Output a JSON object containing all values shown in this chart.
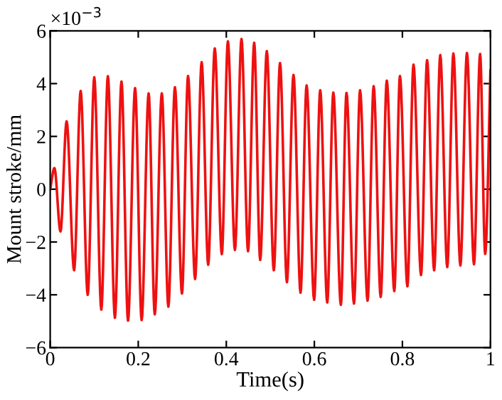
{
  "chart_data": {
    "type": "line",
    "xlabel": "Time(s)",
    "ylabel": "Mount stroke/mm",
    "annotations": [
      "×10$^{−3}$"
    ],
    "xlim": [
      0,
      1
    ],
    "ylim": [
      -6,
      6
    ],
    "xticks": [
      0,
      0.2,
      0.4,
      0.6,
      0.8,
      1
    ],
    "yticks": [
      -6,
      -4,
      -2,
      0,
      2,
      4,
      6
    ],
    "grid": false,
    "marker": "none",
    "line_style": "solid",
    "series": [
      {
        "color": "#ee1111",
        "x": [
          0,
          0.0096,
          0.0234,
          0.0373,
          0.0543,
          0.0692,
          0.0852,
          0.1001,
          0.1161,
          0.131,
          0.147,
          0.1619,
          0.1768,
          0.1928,
          0.2077,
          0.2236,
          0.2375,
          0.2535,
          0.2684,
          0.2833,
          0.2993,
          0.3131,
          0.3291,
          0.344,
          0.3589,
          0.3738,
          0.3898,
          0.4036,
          0.4196,
          0.4345,
          0.4494,
          0.4633,
          0.477,
          0.492,
          0.5079,
          0.522,
          0.5377,
          0.5526,
          0.5686,
          0.5824,
          0.5995,
          0.6133,
          0.6293,
          0.6431,
          0.6602,
          0.673,
          0.69,
          0.7038,
          0.7209,
          0.7347,
          0.7507,
          0.7645,
          0.7816,
          0.7944,
          0.8114,
          0.8252,
          0.8423,
          0.8561,
          0.8721,
          0.886,
          0.9019,
          0.9158,
          0.9317,
          0.9466,
          0.9626,
          0.9765,
          0.988,
          1
        ],
        "values": [
          0,
          0.8,
          -1.6,
          2.57,
          -3.07,
          3.72,
          -4.0,
          4.24,
          -4.56,
          4.28,
          -4.87,
          4.08,
          -4.98,
          3.83,
          -4.96,
          3.63,
          -4.74,
          3.63,
          -4.45,
          3.86,
          -3.95,
          4.29,
          -3.4,
          4.81,
          -2.86,
          5.33,
          -2.46,
          5.6,
          -2.3,
          5.69,
          -2.35,
          5.55,
          -2.68,
          5.23,
          -3.07,
          4.78,
          -3.52,
          4.33,
          -3.92,
          3.93,
          -4.19,
          3.75,
          -4.29,
          3.66,
          -4.38,
          3.65,
          -4.33,
          3.75,
          -4.22,
          3.9,
          -4.08,
          4.11,
          -3.86,
          4.29,
          -3.68,
          4.72,
          -3.25,
          4.89,
          -3.07,
          5.08,
          -2.95,
          5.14,
          -2.89,
          5.16,
          -2.84,
          5.12,
          -2.45,
          4.5
        ]
      }
    ]
  }
}
